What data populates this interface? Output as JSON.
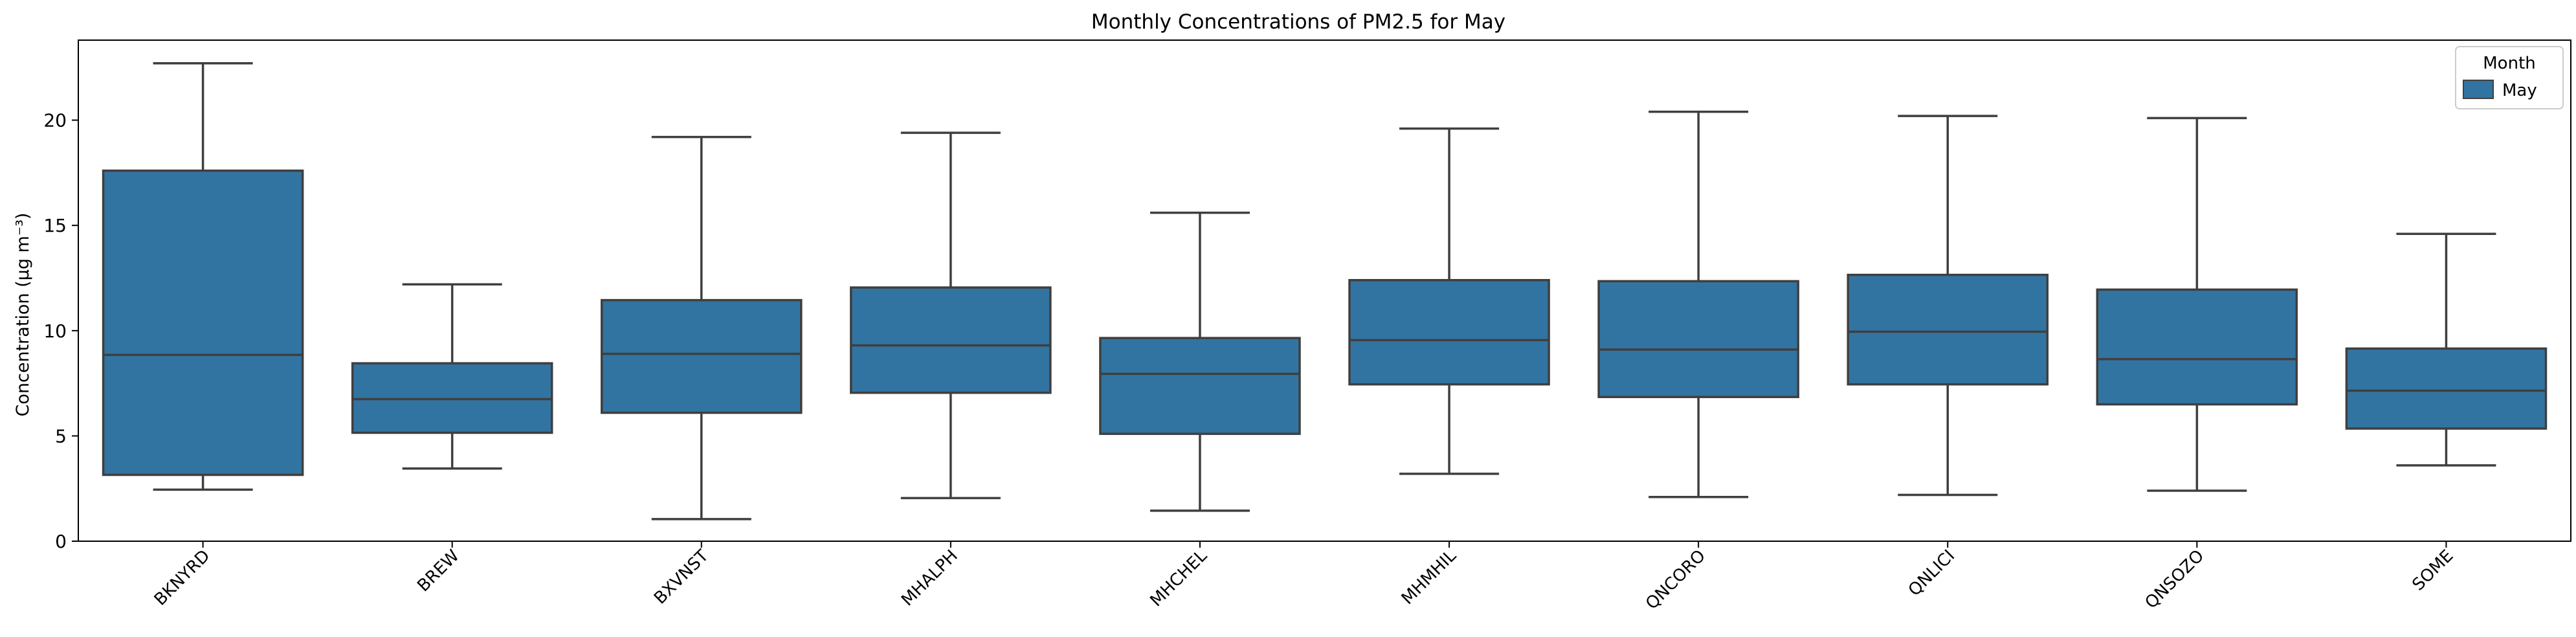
{
  "chart_data": {
    "type": "box",
    "title": "Monthly Concentrations of PM2.5 for May",
    "xlabel": "",
    "ylabel": "Concentration (μg m⁻³)",
    "ylim": [
      0,
      23.8
    ],
    "yticks": [
      0,
      5,
      10,
      15,
      20
    ],
    "grid": false,
    "legend": {
      "title": "Month",
      "placement": "top-right",
      "entries": [
        "May"
      ]
    },
    "series": [
      {
        "name": "May",
        "color": "#3274a1",
        "boxes": [
          {
            "category": "BKNYRD",
            "whisker_low": 2.45,
            "q1": 3.15,
            "median": 8.85,
            "q3": 17.6,
            "whisker_high": 22.7
          },
          {
            "category": "BREW",
            "whisker_low": 3.45,
            "q1": 5.15,
            "median": 6.75,
            "q3": 8.45,
            "whisker_high": 12.2
          },
          {
            "category": "BXVNST",
            "whisker_low": 1.05,
            "q1": 6.1,
            "median": 8.9,
            "q3": 11.45,
            "whisker_high": 19.2
          },
          {
            "category": "MHALPH",
            "whisker_low": 2.05,
            "q1": 7.05,
            "median": 9.3,
            "q3": 12.05,
            "whisker_high": 19.4
          },
          {
            "category": "MHCHEL",
            "whisker_low": 1.45,
            "q1": 5.1,
            "median": 7.95,
            "q3": 9.65,
            "whisker_high": 15.6
          },
          {
            "category": "MHMHIL",
            "whisker_low": 3.2,
            "q1": 7.45,
            "median": 9.55,
            "q3": 12.4,
            "whisker_high": 19.6
          },
          {
            "category": "QNCORO",
            "whisker_low": 2.1,
            "q1": 6.85,
            "median": 9.1,
            "q3": 12.35,
            "whisker_high": 20.4
          },
          {
            "category": "QNLICI",
            "whisker_low": 2.2,
            "q1": 7.45,
            "median": 9.95,
            "q3": 12.65,
            "whisker_high": 20.2
          },
          {
            "category": "QNSOZO",
            "whisker_low": 2.4,
            "q1": 6.5,
            "median": 8.65,
            "q3": 11.95,
            "whisker_high": 20.1
          },
          {
            "category": "SOME",
            "whisker_low": 3.6,
            "q1": 5.35,
            "median": 7.15,
            "q3": 9.15,
            "whisker_high": 14.6
          }
        ]
      }
    ]
  }
}
